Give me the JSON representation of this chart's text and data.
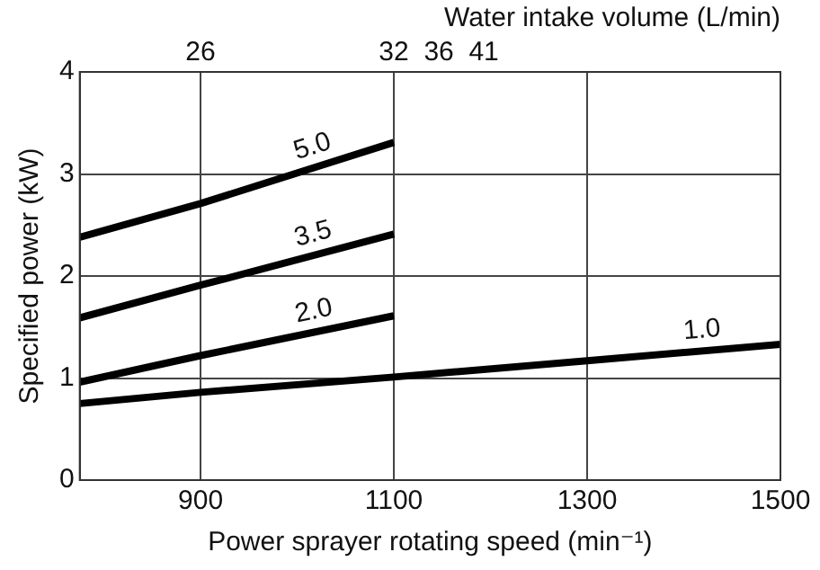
{
  "chart_data": {
    "type": "line",
    "xlabel": "Power sprayer rotating speed (min⁻¹)",
    "ylabel": "Specified power (kW)",
    "annotations": [
      "Water intake volume (L/min)",
      "26",
      "32  36  41"
    ],
    "xlim": [
      775,
      1500
    ],
    "xticks": [
      900,
      1100,
      1300,
      1500
    ],
    "ylim": [
      0,
      4
    ],
    "yticks": [
      0,
      1,
      2,
      3,
      4
    ],
    "grid": true,
    "legend": false,
    "marker": "none",
    "line_style": "solid",
    "series": [
      {
        "name": "5.0",
        "color": "#000000",
        "x": [
          775,
          900,
          1100
        ],
        "values": [
          2.38,
          2.71,
          3.31
        ]
      },
      {
        "name": "3.5",
        "color": "#000000",
        "x": [
          775,
          900,
          1100
        ],
        "values": [
          1.59,
          1.91,
          2.41
        ]
      },
      {
        "name": "2.0",
        "color": "#000000",
        "x": [
          775,
          900,
          1100
        ],
        "values": [
          0.96,
          1.22,
          1.61
        ]
      },
      {
        "name": "1.0",
        "color": "#000000",
        "x": [
          775,
          900,
          1100,
          1300,
          1500
        ],
        "values": [
          0.75,
          0.86,
          1.01,
          1.17,
          1.33
        ]
      }
    ]
  }
}
